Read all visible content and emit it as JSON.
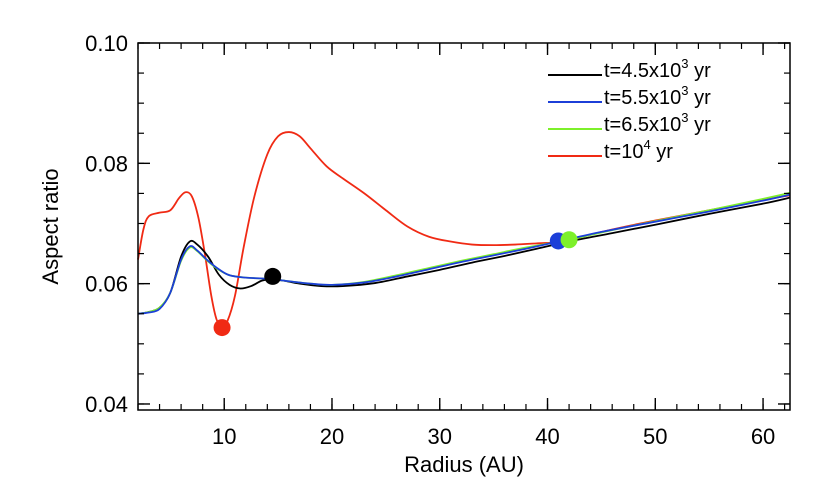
{
  "chart_data": {
    "type": "line",
    "xlabel": "Radius (AU)",
    "ylabel": "Aspect ratio",
    "xlim": [
      2,
      62.5
    ],
    "ylim": [
      0.039,
      0.1
    ],
    "x_ticks": [
      10,
      20,
      30,
      40,
      50,
      60
    ],
    "y_ticks": [
      0.04,
      0.06,
      0.08,
      0.1
    ],
    "y_tick_labels": [
      "0.04",
      "0.06",
      "0.08",
      "0.10"
    ],
    "x_minor_step": 2,
    "y_minor_step": 0.005,
    "grid": false,
    "legend_position": "top-right",
    "series": [
      {
        "name": "t=4.5x10^3 yr",
        "legend": {
          "pre": "t=4.5x10",
          "sup": "3",
          "post": " yr"
        },
        "color": "#000000",
        "points": [
          [
            2,
            0.055
          ],
          [
            3,
            0.0553
          ],
          [
            4,
            0.056
          ],
          [
            5,
            0.0585
          ],
          [
            6,
            0.0645
          ],
          [
            6.8,
            0.067
          ],
          [
            7.5,
            0.0665
          ],
          [
            8.5,
            0.0645
          ],
          [
            9.5,
            0.0615
          ],
          [
            10.5,
            0.0598
          ],
          [
            11.5,
            0.0592
          ],
          [
            12.5,
            0.0596
          ],
          [
            13.5,
            0.0605
          ],
          [
            14.5,
            0.0608
          ],
          [
            15.5,
            0.0605
          ],
          [
            17,
            0.06
          ],
          [
            19,
            0.0596
          ],
          [
            21,
            0.0596
          ],
          [
            24,
            0.0601
          ],
          [
            27,
            0.0612
          ],
          [
            30,
            0.0623
          ],
          [
            33,
            0.0635
          ],
          [
            36,
            0.0646
          ],
          [
            39,
            0.0658
          ],
          [
            42,
            0.067
          ],
          [
            46,
            0.0684
          ],
          [
            50,
            0.0698
          ],
          [
            55,
            0.0716
          ],
          [
            60,
            0.0733
          ],
          [
            62.5,
            0.0743
          ]
        ],
        "marker": [
          14.5,
          0.0612
        ]
      },
      {
        "name": "t=5.5x10^3 yr",
        "legend": {
          "pre": "t=5.5x10",
          "sup": "3",
          "post": " yr"
        },
        "color": "#1c3fd8",
        "points": [
          [
            2,
            0.055
          ],
          [
            3,
            0.0552
          ],
          [
            4,
            0.0558
          ],
          [
            5,
            0.0585
          ],
          [
            6,
            0.064
          ],
          [
            6.8,
            0.0662
          ],
          [
            7.5,
            0.0655
          ],
          [
            8.5,
            0.0638
          ],
          [
            9.5,
            0.0624
          ],
          [
            10.5,
            0.0614
          ],
          [
            12,
            0.061
          ],
          [
            14,
            0.0608
          ],
          [
            16,
            0.0604
          ],
          [
            18,
            0.06
          ],
          [
            20,
            0.0598
          ],
          [
            23,
            0.0602
          ],
          [
            26,
            0.0612
          ],
          [
            29,
            0.0624
          ],
          [
            32,
            0.0636
          ],
          [
            35,
            0.0647
          ],
          [
            38,
            0.0658
          ],
          [
            41,
            0.067
          ],
          [
            45,
            0.0686
          ],
          [
            50,
            0.0703
          ],
          [
            55,
            0.072
          ],
          [
            60,
            0.0738
          ],
          [
            62.5,
            0.0748
          ]
        ],
        "marker": [
          41,
          0.0671
        ]
      },
      {
        "name": "t=6.5x10^3 yr",
        "legend": {
          "pre": "t=6.5x10",
          "sup": "3",
          "post": " yr"
        },
        "color": "#7df02a",
        "points": [
          [
            2,
            0.055
          ],
          [
            3,
            0.0553
          ],
          [
            4,
            0.056
          ],
          [
            5,
            0.0585
          ],
          [
            6,
            0.0638
          ],
          [
            6.8,
            0.066
          ],
          [
            7.5,
            0.0654
          ],
          [
            8.5,
            0.0637
          ],
          [
            9.5,
            0.0623
          ],
          [
            10.5,
            0.0614
          ],
          [
            12,
            0.061
          ],
          [
            14,
            0.0608
          ],
          [
            16,
            0.0604
          ],
          [
            18,
            0.06
          ],
          [
            20,
            0.0598
          ],
          [
            23,
            0.0603
          ],
          [
            26,
            0.0614
          ],
          [
            29,
            0.0626
          ],
          [
            32,
            0.0638
          ],
          [
            35,
            0.0649
          ],
          [
            38,
            0.066
          ],
          [
            42,
            0.0673
          ],
          [
            46,
            0.0689
          ],
          [
            50,
            0.0704
          ],
          [
            55,
            0.0722
          ],
          [
            60,
            0.0741
          ],
          [
            62.5,
            0.0751
          ]
        ],
        "marker": [
          42,
          0.0673
        ]
      },
      {
        "name": "t=10^4 yr",
        "legend": {
          "pre": "t=10",
          "sup": "4",
          "post": " yr"
        },
        "color": "#f02a14",
        "points": [
          [
            2,
            0.064
          ],
          [
            2.5,
            0.069
          ],
          [
            3,
            0.0712
          ],
          [
            4,
            0.0718
          ],
          [
            5,
            0.0722
          ],
          [
            5.8,
            0.0742
          ],
          [
            6.4,
            0.0752
          ],
          [
            7,
            0.0745
          ],
          [
            7.6,
            0.071
          ],
          [
            8.2,
            0.065
          ],
          [
            8.8,
            0.058
          ],
          [
            9.3,
            0.054
          ],
          [
            9.8,
            0.053
          ],
          [
            10.3,
            0.0538
          ],
          [
            11,
            0.058
          ],
          [
            11.8,
            0.066
          ],
          [
            12.8,
            0.0745
          ],
          [
            14,
            0.0815
          ],
          [
            15,
            0.0845
          ],
          [
            16,
            0.0852
          ],
          [
            17,
            0.0845
          ],
          [
            18,
            0.0825
          ],
          [
            19.5,
            0.0795
          ],
          [
            21,
            0.0775
          ],
          [
            23,
            0.075
          ],
          [
            25,
            0.0722
          ],
          [
            27,
            0.0695
          ],
          [
            29,
            0.0678
          ],
          [
            31,
            0.067
          ],
          [
            33,
            0.0665
          ],
          [
            35,
            0.0664
          ],
          [
            37,
            0.0665
          ],
          [
            39,
            0.0667
          ],
          [
            41,
            0.0669
          ],
          [
            43,
            0.0677
          ],
          [
            46,
            0.069
          ],
          [
            50,
            0.0705
          ],
          [
            55,
            0.0722
          ],
          [
            60,
            0.0739
          ],
          [
            62.5,
            0.0747
          ]
        ],
        "marker": [
          9.8,
          0.0527
        ]
      }
    ]
  }
}
